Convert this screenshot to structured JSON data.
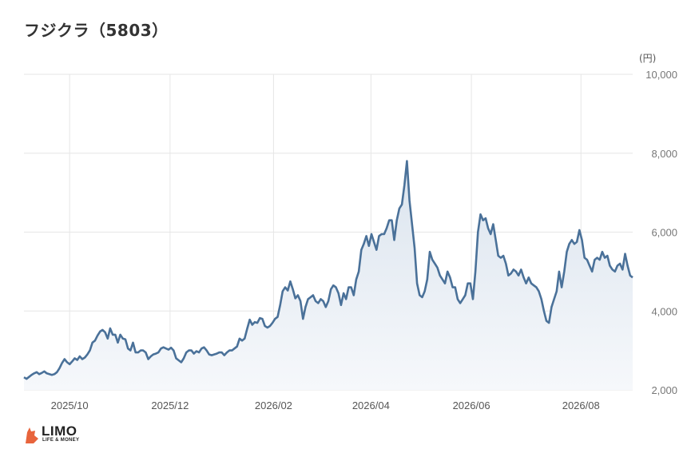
{
  "title": "フジクラ（5803）",
  "logo": {
    "name": "LIMO",
    "tagline": "LIFE & MONEY"
  },
  "colors": {
    "line": "#4a7199",
    "fill_top": "#dbe4ee",
    "fill_bottom": "#f6f8fb",
    "grid": "#e6e6e6",
    "logo_accent": "#e8643c"
  },
  "chart_data": {
    "type": "area",
    "unit_label": "(円)",
    "ylim": [
      2000,
      10000
    ],
    "y_ticks": [
      2000,
      4000,
      6000,
      8000,
      10000
    ],
    "y_tick_labels": [
      "2,000",
      "4,000",
      "6,000",
      "8,000",
      "10,000"
    ],
    "x_tick_labels": [
      "2025/10",
      "2025/12",
      "2026/02",
      "2026/04",
      "2026/06",
      "2026/08"
    ],
    "x_tick_positions": [
      15,
      48,
      82,
      114,
      147,
      183
    ],
    "x_range": [
      0,
      200
    ],
    "grid": true,
    "series": [
      {
        "values": [
          2320,
          2280,
          2330,
          2380,
          2420,
          2450,
          2400,
          2430,
          2470,
          2420,
          2400,
          2380,
          2400,
          2450,
          2550,
          2680,
          2780,
          2700,
          2650,
          2720,
          2800,
          2760,
          2850,
          2780,
          2820,
          2900,
          3000,
          3200,
          3250,
          3380,
          3480,
          3520,
          3460,
          3300,
          3560,
          3400,
          3400,
          3200,
          3400,
          3300,
          3280,
          3050,
          3000,
          3200,
          2950,
          2950,
          3000,
          3000,
          2950,
          2780,
          2850,
          2900,
          2920,
          2950,
          3050,
          3080,
          3050,
          3020,
          3070,
          3000,
          2800,
          2750,
          2700,
          2800,
          2950,
          3000,
          3000,
          2920,
          2980,
          2950,
          3050,
          3080,
          3000,
          2900,
          2880,
          2900,
          2920,
          2950,
          2950,
          2880,
          2950,
          3000,
          3000,
          3050,
          3100,
          3300,
          3250,
          3300,
          3550,
          3780,
          3650,
          3720,
          3700,
          3820,
          3800,
          3620,
          3580,
          3620,
          3700,
          3800,
          3850,
          4150,
          4500,
          4600,
          4520,
          4750,
          4550,
          4320,
          4400,
          4250,
          3800,
          4100,
          4300,
          4350,
          4400,
          4250,
          4200,
          4300,
          4250,
          4100,
          4250,
          4550,
          4650,
          4600,
          4450,
          4150,
          4450,
          4300,
          4600,
          4600,
          4400,
          4800,
          5000,
          5550,
          5700,
          5900,
          5650,
          5950,
          5750,
          5550,
          5900,
          5950,
          5950,
          6100,
          6300,
          6300,
          5800,
          6300,
          6600,
          6700,
          7200,
          7800,
          6800,
          6200,
          5600,
          4700,
          4400,
          4350,
          4500,
          4800,
          5500,
          5300,
          5200,
          5100,
          4900,
          4800,
          4700,
          5000,
          4850,
          4600,
          4600,
          4300,
          4200,
          4300,
          4400,
          4700,
          4700,
          4300,
          5000,
          6000,
          6450,
          6300,
          6350,
          6100,
          5950,
          6200,
          5800,
          5400,
          5350,
          5400,
          5200,
          4900,
          4950,
          5050,
          5000,
          4900,
          5050,
          4850,
          4700,
          4850,
          4700,
          4650,
          4600,
          4500,
          4300,
          4000,
          3750,
          3700,
          4100,
          4300,
          4500,
          5000,
          4600,
          5000,
          5500,
          5700,
          5800,
          5700,
          5750,
          6050,
          5800,
          5350,
          5300,
          5150,
          5000,
          5300,
          5350,
          5300,
          5500,
          5350,
          5400,
          5150,
          5050,
          5000,
          5150,
          5200,
          5050,
          5450,
          5150,
          4900,
          4850
        ]
      }
    ]
  }
}
